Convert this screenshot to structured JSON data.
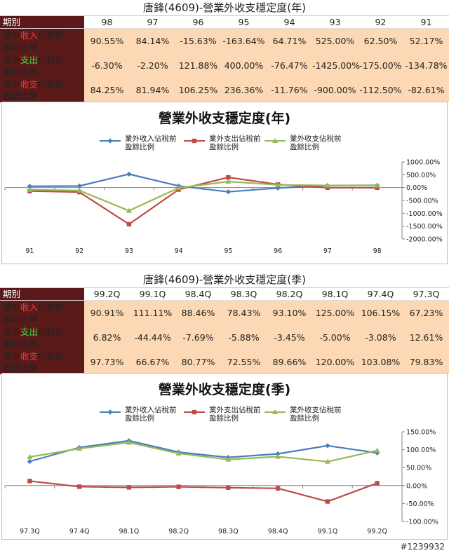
{
  "annual": {
    "title": "唐鋒(4609)-營業外收支穩定度(年)",
    "header_label": "期別",
    "columns": [
      "98",
      "97",
      "96",
      "95",
      "94",
      "93",
      "92",
      "91"
    ],
    "rows": [
      {
        "p1": "業外",
        "p2": "收入",
        "p3": "佔稅前",
        "p4": "盈餘比例",
        "color": "red",
        "values": [
          "90.55%",
          "84.14%",
          "-15.63%",
          "-163.64%",
          "64.71%",
          "525.00%",
          "62.50%",
          "52.17%"
        ]
      },
      {
        "p1": "業外",
        "p2": "支出",
        "p3": "佔稅前",
        "p4": "盈餘比例",
        "color": "green",
        "values": [
          "-6.30%",
          "-2.20%",
          "121.88%",
          "400.00%",
          "-76.47%",
          "-1425.00%",
          "-175.00%",
          "-134.78%"
        ]
      },
      {
        "p1": "業外",
        "p2": "收支",
        "p3": "佔稅前",
        "p4": "盈餘比例",
        "color": "red",
        "values": [
          "84.25%",
          "81.94%",
          "106.25%",
          "236.36%",
          "-11.76%",
          "-900.00%",
          "-112.50%",
          "-82.61%"
        ]
      }
    ]
  },
  "quarterly": {
    "title": "唐鋒(4609)-營業外收支穩定度(季)",
    "header_label": "期別",
    "columns": [
      "99.2Q",
      "99.1Q",
      "98.4Q",
      "98.3Q",
      "98.2Q",
      "98.1Q",
      "97.4Q",
      "97.3Q"
    ],
    "rows": [
      {
        "p1": "業外",
        "p2": "收入",
        "p3": "佔稅前",
        "p4": "盈餘比例",
        "color": "red",
        "values": [
          "90.91%",
          "111.11%",
          "88.46%",
          "78.43%",
          "93.10%",
          "125.00%",
          "106.15%",
          "67.23%"
        ]
      },
      {
        "p1": "業外",
        "p2": "支出",
        "p3": "佔稅前",
        "p4": "盈餘比例",
        "color": "green",
        "values": [
          "6.82%",
          "-44.44%",
          "-7.69%",
          "-5.88%",
          "-3.45%",
          "-5.00%",
          "-3.08%",
          "12.61%"
        ]
      },
      {
        "p1": "業外",
        "p2": "收支",
        "p3": "佔稅前",
        "p4": "盈餘比例",
        "color": "red",
        "values": [
          "97.73%",
          "66.67%",
          "80.77%",
          "72.55%",
          "89.66%",
          "120.00%",
          "103.08%",
          "79.83%"
        ]
      }
    ]
  },
  "chart_data": [
    {
      "type": "line",
      "title": "營業外收支穩定度(年)",
      "categories": [
        "91",
        "92",
        "93",
        "94",
        "95",
        "96",
        "97",
        "98"
      ],
      "ylim": [
        -2000,
        1000
      ],
      "yticks": [
        "1000.00%",
        "500.00%",
        "0.00%",
        "-500.00%",
        "-1000.00%",
        "-1500.00%",
        "-2000.00%"
      ],
      "ytick_values": [
        1000,
        500,
        0,
        -500,
        -1000,
        -1500,
        -2000
      ],
      "legend_position": "top",
      "grid": false,
      "series": [
        {
          "name_line1": "業外收入佔稅前",
          "name_line2": "盈餘比例",
          "color": "#4a7ebb",
          "marker": "diamond",
          "values": [
            52.17,
            62.5,
            525.0,
            64.71,
            -163.64,
            -15.63,
            84.14,
            90.55
          ]
        },
        {
          "name_line1": "業外支出佔稅前",
          "name_line2": "盈餘比例",
          "color": "#be4b48",
          "marker": "square",
          "values": [
            -134.78,
            -175.0,
            -1425.0,
            -76.47,
            400.0,
            121.88,
            -2.2,
            -6.3
          ]
        },
        {
          "name_line1": "業外收支佔稅前",
          "name_line2": "盈餘比例",
          "color": "#98b954",
          "marker": "triangle",
          "values": [
            -82.61,
            -112.5,
            -900.0,
            -11.76,
            236.36,
            106.25,
            81.94,
            84.25
          ]
        }
      ]
    },
    {
      "type": "line",
      "title": "營業外收支穩定度(季)",
      "categories": [
        "97.3Q",
        "97.4Q",
        "98.1Q",
        "98.2Q",
        "98.3Q",
        "98.4Q",
        "99.1Q",
        "99.2Q"
      ],
      "ylim": [
        -100,
        150
      ],
      "yticks": [
        "150.00%",
        "100.00%",
        "50.00%",
        "0.00%",
        "-50.00%",
        "-100.00%"
      ],
      "ytick_values": [
        150,
        100,
        50,
        0,
        -50,
        -100
      ],
      "legend_position": "top",
      "grid": false,
      "series": [
        {
          "name_line1": "業外收入佔稅前",
          "name_line2": "盈餘比例",
          "color": "#4a7ebb",
          "marker": "diamond",
          "values": [
            67.23,
            106.15,
            125.0,
            93.1,
            78.43,
            88.46,
            111.11,
            90.91
          ]
        },
        {
          "name_line1": "業外支出佔稅前",
          "name_line2": "盈餘比例",
          "color": "#be4b48",
          "marker": "square",
          "values": [
            12.61,
            -3.08,
            -5.0,
            -3.45,
            -5.88,
            -7.69,
            -44.44,
            6.82
          ]
        },
        {
          "name_line1": "業外收支佔稅前",
          "name_line2": "盈餘比例",
          "color": "#98b954",
          "marker": "triangle",
          "values": [
            79.83,
            103.08,
            120.0,
            89.66,
            72.55,
            80.77,
            66.67,
            97.73
          ]
        }
      ]
    }
  ],
  "footer": {
    "id": "#1239932"
  }
}
